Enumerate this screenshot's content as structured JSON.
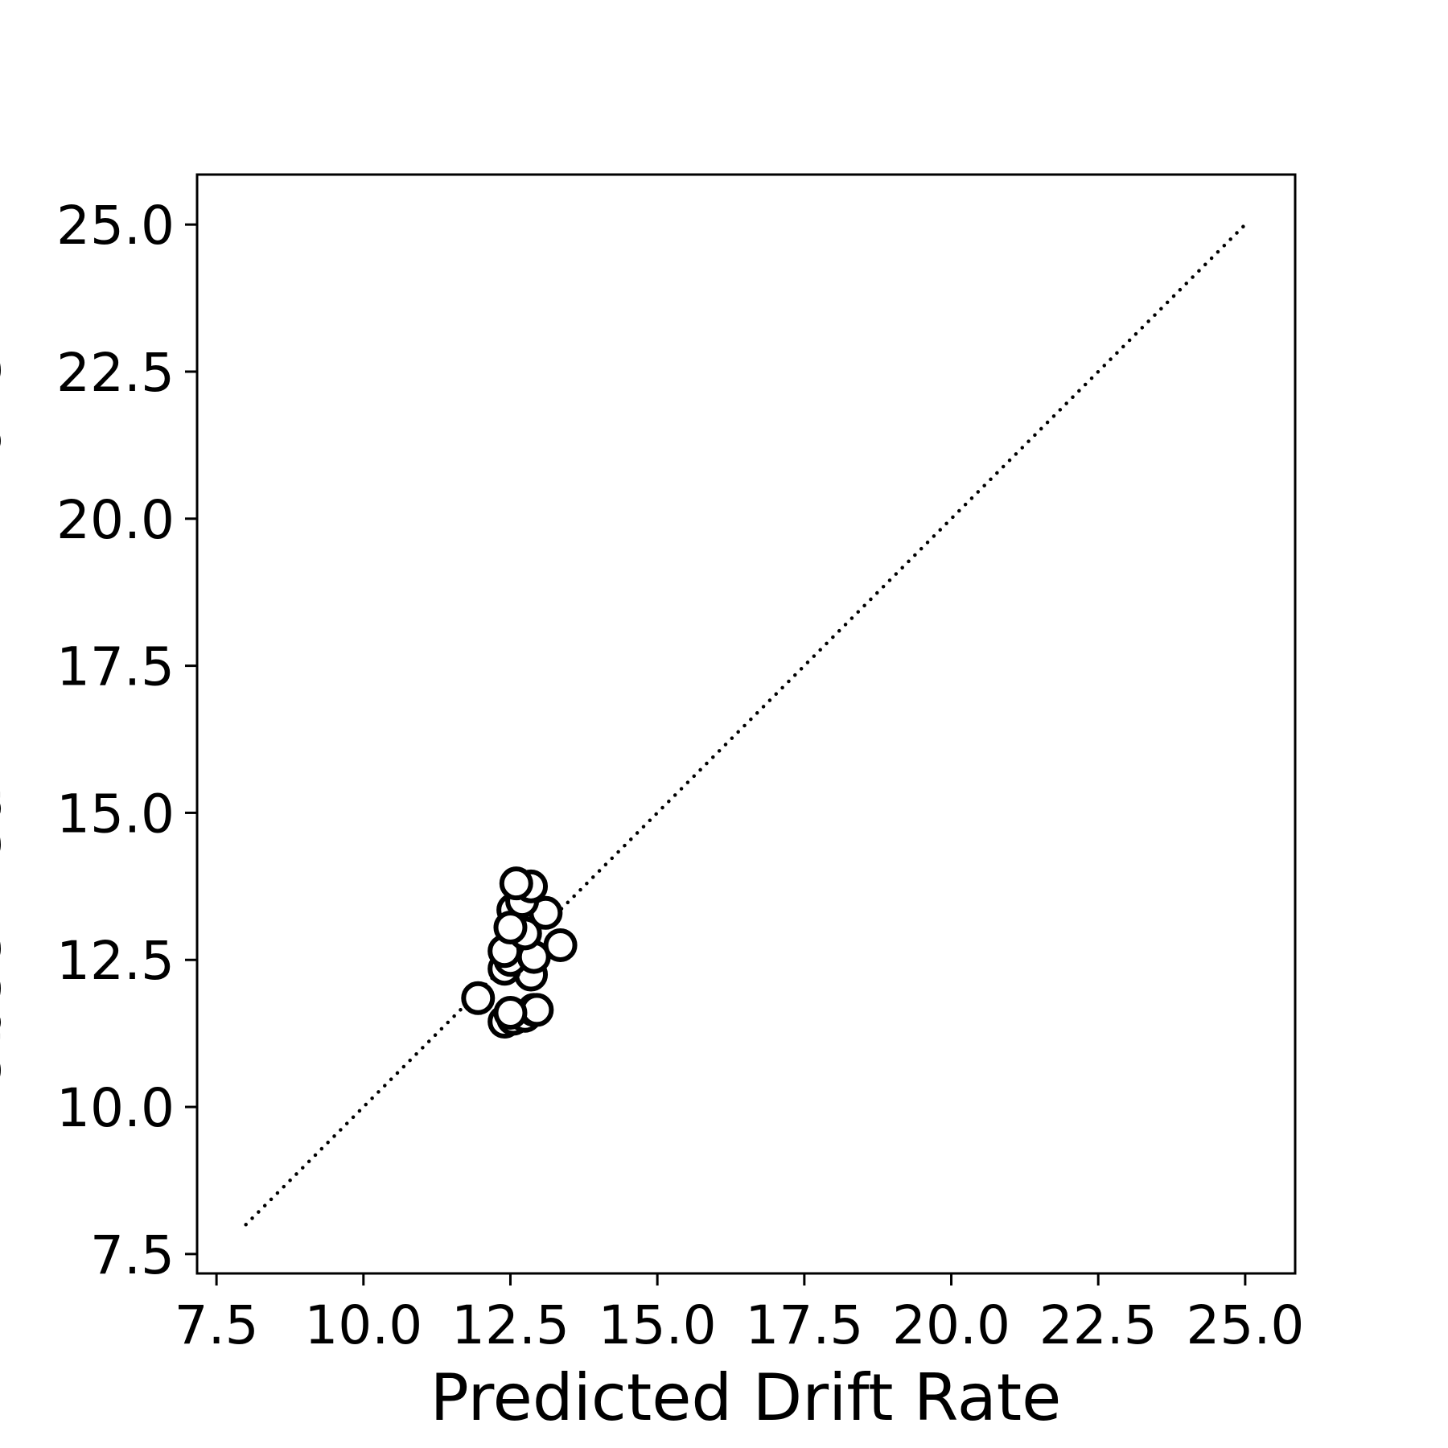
{
  "chart_data": {
    "type": "scatter",
    "title": "",
    "xlabel": "Predicted Drift Rate",
    "ylabel": "Observed AV Drift Rate",
    "xlim": [
      7.17,
      25.85
    ],
    "ylim": [
      7.17,
      25.85
    ],
    "x_ticks": [
      "7.5",
      "10.0",
      "12.5",
      "15.0",
      "17.5",
      "20.0",
      "22.5",
      "25.0"
    ],
    "y_ticks": [
      "7.5",
      "10.0",
      "12.5",
      "15.0",
      "17.5",
      "20.0",
      "22.5",
      "25.0"
    ],
    "grid": false,
    "marker": {
      "shape": "circle",
      "fill": "#ffffff",
      "edge": "#000000"
    },
    "reference_line": {
      "style": "dotted",
      "color": "#000000",
      "x": [
        8.0,
        25.0
      ],
      "y": [
        8.0,
        25.0
      ]
    },
    "points": [
      {
        "x": 11.95,
        "y": 11.85
      },
      {
        "x": 12.4,
        "y": 11.45
      },
      {
        "x": 12.55,
        "y": 11.5
      },
      {
        "x": 12.75,
        "y": 11.55
      },
      {
        "x": 12.9,
        "y": 11.65
      },
      {
        "x": 12.95,
        "y": 11.65
      },
      {
        "x": 12.5,
        "y": 11.6
      },
      {
        "x": 12.85,
        "y": 12.25
      },
      {
        "x": 12.4,
        "y": 12.35
      },
      {
        "x": 12.5,
        "y": 12.5
      },
      {
        "x": 12.4,
        "y": 12.65
      },
      {
        "x": 12.9,
        "y": 12.55
      },
      {
        "x": 13.35,
        "y": 12.75
      },
      {
        "x": 12.75,
        "y": 12.95
      },
      {
        "x": 13.1,
        "y": 13.3
      },
      {
        "x": 12.55,
        "y": 13.35
      },
      {
        "x": 12.7,
        "y": 13.5
      },
      {
        "x": 12.85,
        "y": 13.75
      },
      {
        "x": 12.6,
        "y": 13.8
      },
      {
        "x": 12.5,
        "y": 13.05
      }
    ]
  }
}
